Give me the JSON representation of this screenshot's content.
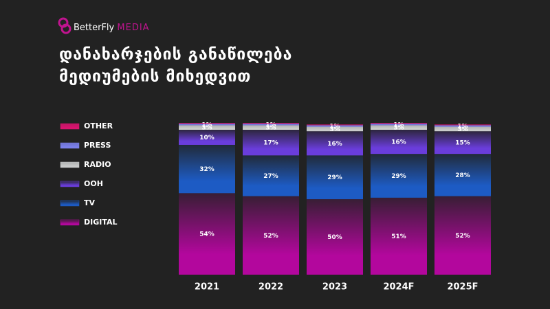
{
  "logo": {
    "name": "BetterFly",
    "suffix": "MEDIA"
  },
  "chart_data": {
    "type": "bar",
    "stacked": true,
    "title": [
      "დანახარჯების განაწილება",
      "მედიუმების მიხედვით"
    ],
    "categories": [
      "2021",
      "2022",
      "2023",
      "2024F",
      "2025F"
    ],
    "ylim": [
      0,
      101
    ],
    "series": [
      {
        "name": "DIGITAL",
        "color": "#b3079d",
        "values": [
          54,
          52,
          50,
          51,
          52
        ],
        "value_labels": [
          "54%",
          "52%",
          "50%",
          "51%",
          "52%"
        ]
      },
      {
        "name": "TV",
        "color": "#1d5bc4",
        "values": [
          32,
          27,
          29,
          29,
          28
        ],
        "value_labels": [
          "32%",
          "27%",
          "29%",
          "29%",
          "28%"
        ]
      },
      {
        "name": "OOH",
        "color": "#6a3ddb",
        "values": [
          10,
          17,
          16,
          16,
          15
        ],
        "value_labels": [
          "10%",
          "17%",
          "16%",
          "16%",
          "15%"
        ]
      },
      {
        "name": "RADIO",
        "color": "#c9cbcb",
        "values": [
          3,
          3,
          3,
          3,
          3
        ],
        "value_labels": [
          "3%",
          "3%",
          "3%",
          "3%",
          "3%"
        ]
      },
      {
        "name": "PRESS",
        "color": "#7b80ea",
        "values": [
          1,
          1,
          1,
          1,
          1
        ],
        "value_labels": [
          "1%",
          "1%",
          "1%",
          "1%",
          "1%"
        ]
      },
      {
        "name": "OTHER",
        "color": "#d9146f",
        "values": [
          0.5,
          0.5,
          0.5,
          0.5,
          0.5
        ]
      }
    ]
  }
}
